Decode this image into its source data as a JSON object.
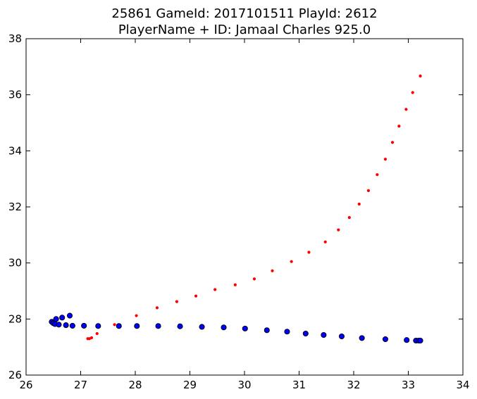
{
  "chart_data": {
    "type": "scatter",
    "title_line1": "25861 GameId: 2017101511 PlayId: 2612",
    "title_line2": "PlayerName + ID: Jamaal Charles 925.0",
    "xlabel": "",
    "ylabel": "",
    "xlim": [
      26,
      34
    ],
    "ylim": [
      26,
      38
    ],
    "xticks": [
      "26",
      "27",
      "28",
      "29",
      "30",
      "31",
      "32",
      "33",
      "34"
    ],
    "yticks": [
      "26",
      "28",
      "30",
      "32",
      "34",
      "36",
      "38"
    ],
    "grid": false,
    "legend": "none",
    "series": [
      {
        "color": "#ff0000",
        "marker": "small-dot",
        "points": [
          [
            27.13,
            27.3
          ],
          [
            27.16,
            27.3
          ],
          [
            27.2,
            27.33
          ],
          [
            27.3,
            27.48
          ],
          [
            27.62,
            27.8
          ],
          [
            28.02,
            28.12
          ],
          [
            28.4,
            28.4
          ],
          [
            28.76,
            28.62
          ],
          [
            29.11,
            28.82
          ],
          [
            29.46,
            29.05
          ],
          [
            29.83,
            29.22
          ],
          [
            30.18,
            29.43
          ],
          [
            30.51,
            29.72
          ],
          [
            30.86,
            30.05
          ],
          [
            31.18,
            30.38
          ],
          [
            31.48,
            30.75
          ],
          [
            31.72,
            31.18
          ],
          [
            31.92,
            31.62
          ],
          [
            32.1,
            32.1
          ],
          [
            32.27,
            32.58
          ],
          [
            32.43,
            33.15
          ],
          [
            32.58,
            33.7
          ],
          [
            32.71,
            34.3
          ],
          [
            32.83,
            34.88
          ],
          [
            32.96,
            35.48
          ],
          [
            33.08,
            36.08
          ],
          [
            33.22,
            36.67
          ]
        ]
      },
      {
        "color": "#0000ff",
        "marker": "circle",
        "points": [
          [
            26.47,
            27.9
          ],
          [
            26.5,
            27.85
          ],
          [
            26.53,
            27.82
          ],
          [
            26.55,
            28.0
          ],
          [
            26.6,
            27.8
          ],
          [
            26.66,
            28.05
          ],
          [
            26.73,
            27.78
          ],
          [
            26.8,
            28.12
          ],
          [
            26.85,
            27.76
          ],
          [
            27.06,
            27.76
          ],
          [
            27.32,
            27.75
          ],
          [
            27.7,
            27.75
          ],
          [
            28.03,
            27.75
          ],
          [
            28.42,
            27.75
          ],
          [
            28.82,
            27.74
          ],
          [
            29.22,
            27.72
          ],
          [
            29.62,
            27.7
          ],
          [
            30.01,
            27.66
          ],
          [
            30.41,
            27.6
          ],
          [
            30.78,
            27.55
          ],
          [
            31.12,
            27.48
          ],
          [
            31.45,
            27.43
          ],
          [
            31.78,
            27.38
          ],
          [
            32.15,
            27.32
          ],
          [
            32.58,
            27.28
          ],
          [
            32.97,
            27.25
          ],
          [
            33.14,
            27.23
          ],
          [
            33.19,
            27.23
          ],
          [
            33.22,
            27.23
          ]
        ]
      }
    ]
  }
}
